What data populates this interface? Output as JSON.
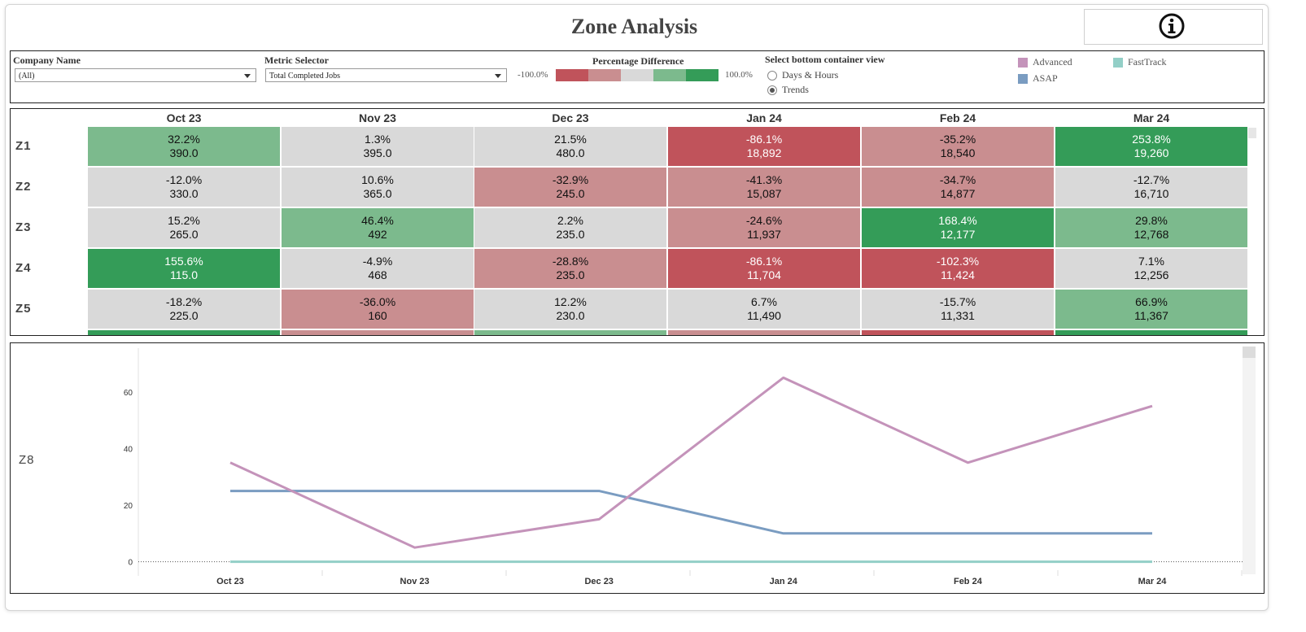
{
  "title": "Zone Analysis",
  "info_icon": "info-circle-icon",
  "filters": {
    "company": {
      "label": "Company Name",
      "value": "(All)"
    },
    "metric": {
      "label": "Metric Selector",
      "value": "Total Completed Jobs"
    },
    "percentage": {
      "label": "Percentage Difference",
      "min_label": "-100.0%",
      "max_label": "100.0%",
      "ramp_colors": [
        "#c0535b",
        "#c98e90",
        "#d9d9d9",
        "#7cba8d",
        "#349c58"
      ]
    },
    "view": {
      "label": "Select bottom container view",
      "options": [
        "Days & Hours",
        "Trends"
      ],
      "selected": "Trends"
    }
  },
  "legend": [
    {
      "name": "Advanced",
      "color": "#c493ba"
    },
    {
      "name": "FastTrack",
      "color": "#93cfc7"
    },
    {
      "name": "ASAP",
      "color": "#7a9cc1"
    }
  ],
  "table": {
    "months": [
      "Oct 23",
      "Nov 23",
      "Dec 23",
      "Jan 24",
      "Feb 24",
      "Mar 24"
    ],
    "rows": [
      {
        "zone": "Z1",
        "cells": [
          [
            "32.2%",
            "390.0"
          ],
          [
            "1.3%",
            "395.0"
          ],
          [
            "21.5%",
            "480.0"
          ],
          [
            "-86.1%",
            "18,892"
          ],
          [
            "-35.2%",
            "18,540"
          ],
          [
            "253.8%",
            "19,260"
          ]
        ]
      },
      {
        "zone": "Z2",
        "cells": [
          [
            "-12.0%",
            "330.0"
          ],
          [
            "10.6%",
            "365.0"
          ],
          [
            "-32.9%",
            "245.0"
          ],
          [
            "-41.3%",
            "15,087"
          ],
          [
            "-34.7%",
            "14,877"
          ],
          [
            "-12.7%",
            "16,710"
          ]
        ]
      },
      {
        "zone": "Z3",
        "cells": [
          [
            "15.2%",
            "265.0"
          ],
          [
            "46.4%",
            "492"
          ],
          [
            "2.2%",
            "235.0"
          ],
          [
            "-24.6%",
            "11,937"
          ],
          [
            "168.4%",
            "12,177"
          ],
          [
            "29.8%",
            "12,768"
          ]
        ]
      },
      {
        "zone": "Z4",
        "cells": [
          [
            "155.6%",
            "115.0"
          ],
          [
            "-4.9%",
            "468"
          ],
          [
            "-28.8%",
            "235.0"
          ],
          [
            "-86.1%",
            "11,704"
          ],
          [
            "-102.3%",
            "11,424"
          ],
          [
            "7.1%",
            "12,256"
          ]
        ]
      },
      {
        "zone": "Z5",
        "cells": [
          [
            "-18.2%",
            "225.0"
          ],
          [
            "-36.0%",
            "160"
          ],
          [
            "12.2%",
            "230.0"
          ],
          [
            "6.7%",
            "11,490"
          ],
          [
            "-15.7%",
            "11,331"
          ],
          [
            "66.9%",
            "11,367"
          ]
        ]
      }
    ],
    "partial_row_colors": [
      "#349c58",
      "#c98e90",
      "#7cba8d",
      "#c98e90",
      "#c0535b",
      "#349c58"
    ]
  },
  "chart_data": {
    "type": "line",
    "zone": "Z8",
    "categories": [
      "Oct 23",
      "Nov 23",
      "Dec 23",
      "Jan 24",
      "Feb 24",
      "Mar 24"
    ],
    "series": [
      {
        "name": "Advanced",
        "color": "#c493ba",
        "values": [
          35,
          5,
          15,
          65,
          35,
          55
        ]
      },
      {
        "name": "ASAP",
        "color": "#7a9cc1",
        "values": [
          25,
          25,
          25,
          10,
          10,
          10
        ]
      },
      {
        "name": "FastTrack",
        "color": "#93cfc7",
        "values": [
          0,
          0,
          0,
          0,
          0,
          0
        ]
      }
    ],
    "yticks": [
      0,
      20,
      40,
      60
    ],
    "ylim": [
      -5,
      72
    ],
    "xlabel": "",
    "ylabel": "",
    "title": ""
  }
}
